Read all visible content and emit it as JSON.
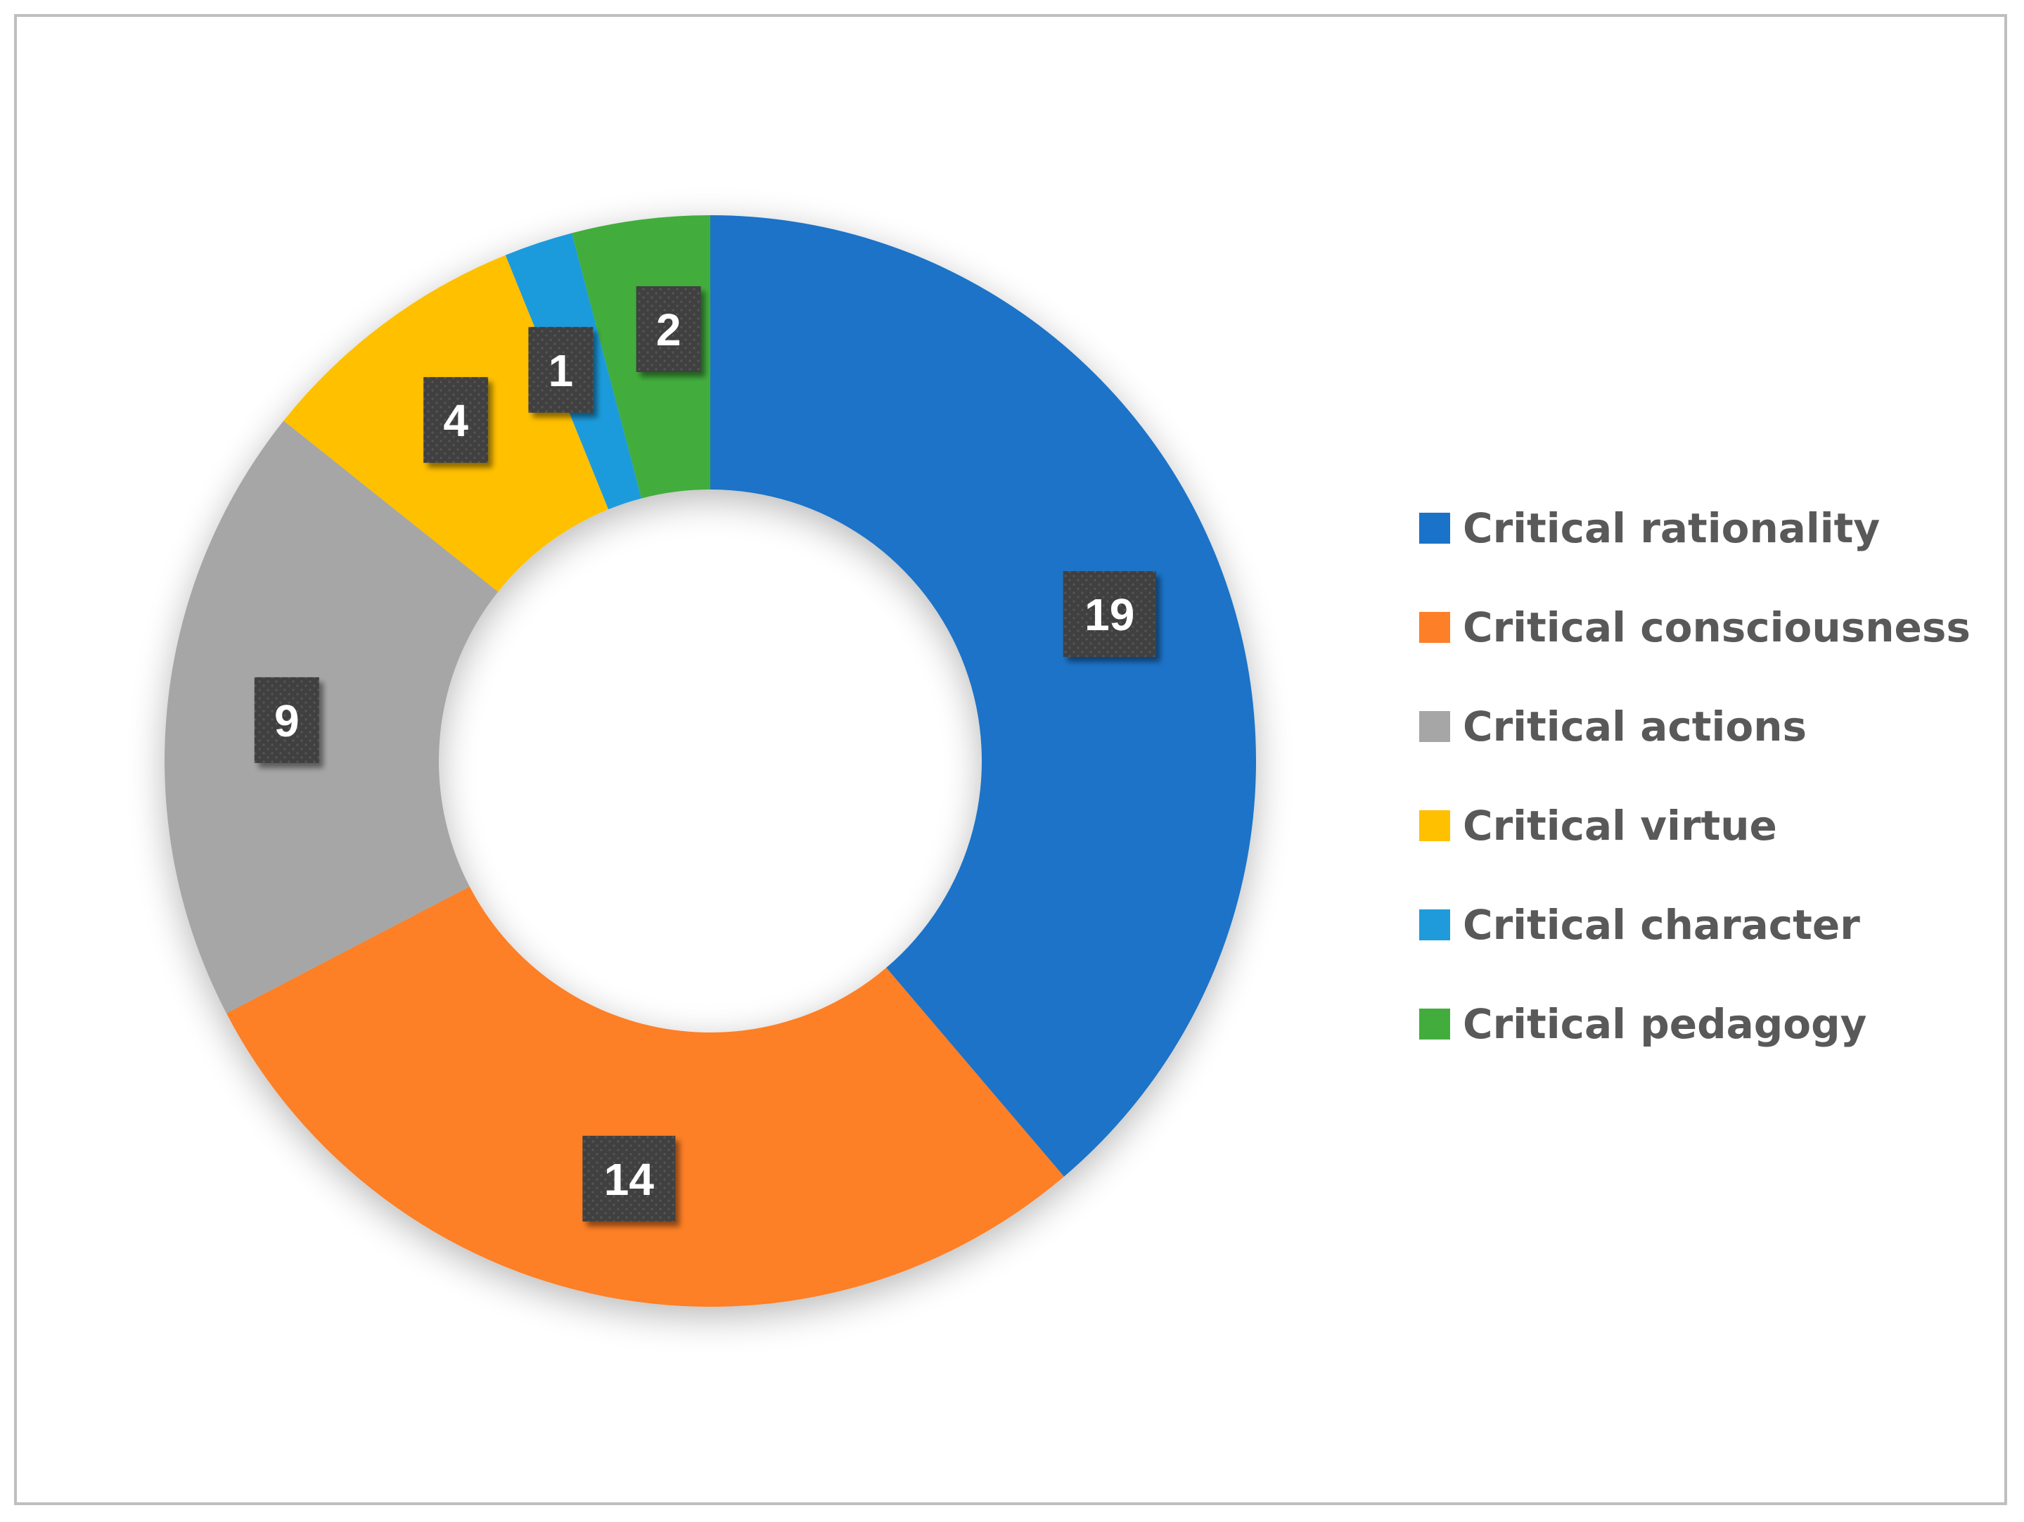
{
  "chart_data": {
    "type": "pie",
    "variant": "donut",
    "title": "",
    "categories": [
      "Critical rationality",
      "Critical consciousness",
      "Critical actions",
      "Critical virtue",
      "Critical character",
      "Critical pedagogy"
    ],
    "values": [
      19,
      14,
      9,
      4,
      1,
      2
    ],
    "colors": [
      "#1a73c8",
      "#fd7f27",
      "#a6a6a6",
      "#ffc000",
      "#1f9bdc",
      "#42ad3c"
    ],
    "data_labels": [
      "19",
      "14",
      "9",
      "4",
      "1",
      "2"
    ],
    "legend_position": "right",
    "start_angle_deg": 0,
    "direction": "clockwise",
    "data_label_style": {
      "fill": "#404040",
      "text_color": "#ffffff"
    }
  }
}
